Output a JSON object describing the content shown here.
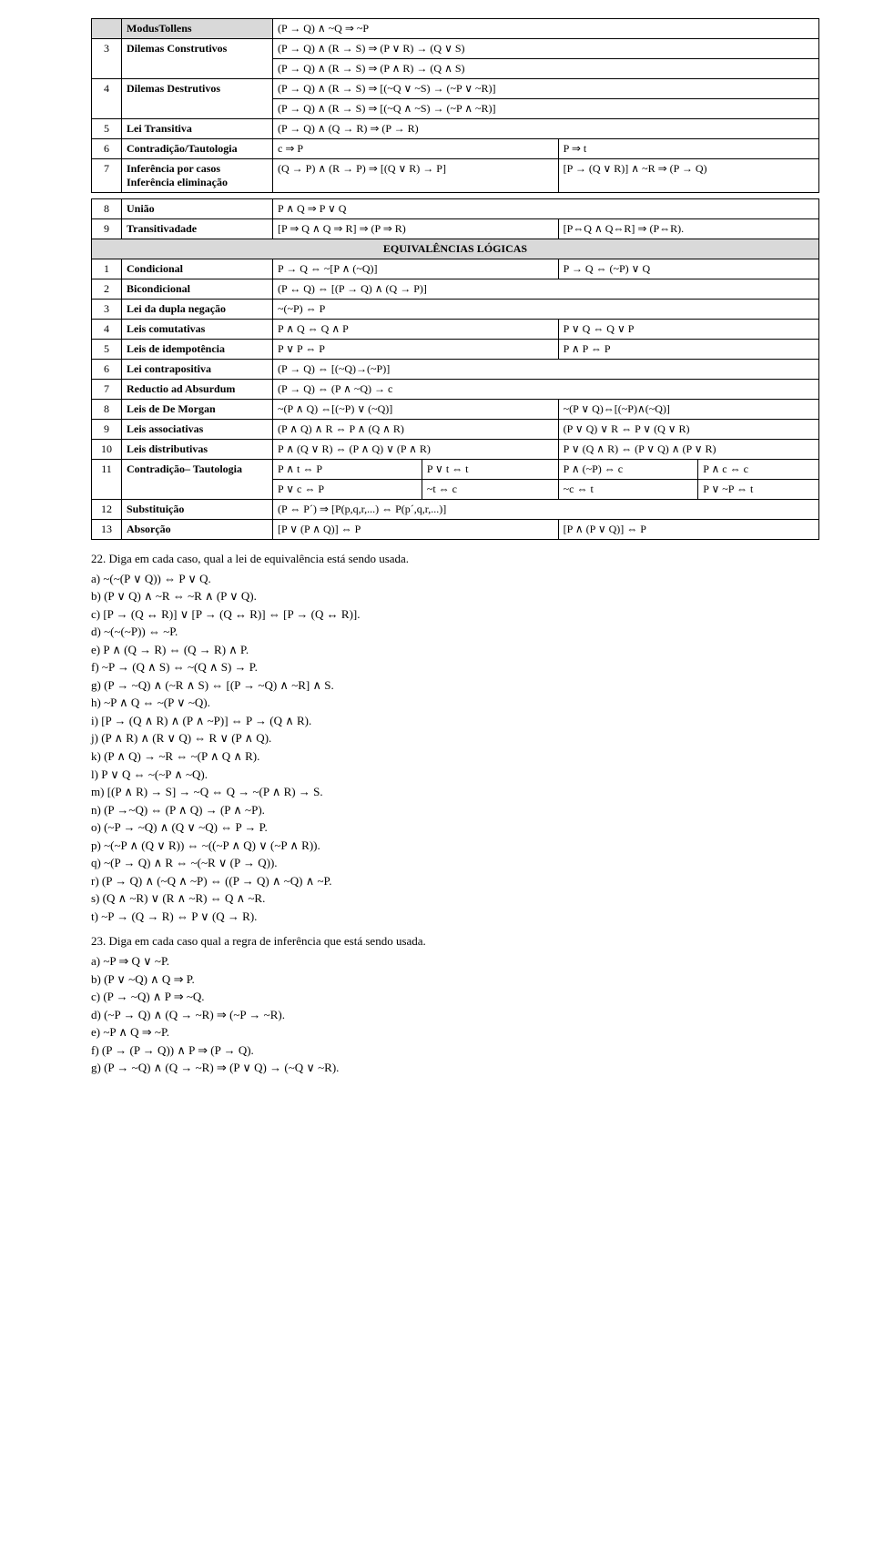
{
  "table1": {
    "rows": [
      {
        "num": "",
        "name": "ModusTollens",
        "c1": "(P → Q) ∧ ~Q ⇒ ~P",
        "c2": "",
        "cols": 1,
        "shadedNum": true,
        "shadedName": true
      },
      {
        "num": "3",
        "name": "Dilemas Construtivos",
        "c1a": "(P → Q) ∧ (R → S) ⇒ (P ∨ R) → (Q ∨ S)",
        "c1b": "(P → Q) ∧ (R → S) ⇒ (P ∧ R) → (Q ∧ S)",
        "two": true
      },
      {
        "num": "4",
        "name": "Dilemas Destrutivos",
        "c1a": "(P → Q) ∧ (R → S) ⇒ [(~Q ∨ ~S) → (~P ∨ ~R)]",
        "c1b": "(P → Q) ∧ (R → S) ⇒ [(~Q ∧ ~S) → (~P ∧ ~R)]",
        "two": true
      },
      {
        "num": "5",
        "name": "Lei Transitiva",
        "c1": "(P → Q) ∧ (Q → R) ⇒ (P → R)",
        "cols": 1
      },
      {
        "num": "6",
        "name": "Contradição/Tautologia",
        "c1": "c ⇒ P",
        "c2": "P ⇒ t",
        "cols": 2
      },
      {
        "num": "7",
        "name": "Inferência por casos Inferência eliminação",
        "c1": "(Q → P) ∧ (R → P) ⇒ [(Q ∨ R) → P]",
        "c2": "[P → (Q ∨ R)] ∧ ~R ⇒ (P → Q)",
        "cols": 2
      }
    ],
    "rows2": [
      {
        "num": "8",
        "name": "União",
        "c1": "P ∧ Q ⇒ P ∨ Q",
        "cols": 1
      },
      {
        "num": "9",
        "name": "Transitivadade",
        "c1": "[P ⇒ Q ∧ Q ⇒ R] ⇒ (P ⇒ R)",
        "c2": "[P⇔Q ∧ Q⇔R] ⇒ (P⇔R).",
        "cols": 2
      }
    ],
    "equivHeader": "EQUIVALÊNCIAS LÓGICAS",
    "equiv": [
      {
        "num": "1",
        "name": "Condicional",
        "c1": "P → Q ⇔ ~[P ∧ (~Q)]",
        "c2": "P → Q ⇔ (~P) ∨ Q",
        "cols": 2
      },
      {
        "num": "2",
        "name": "Bicondicional",
        "c1": "(P ↔ Q) ⇔ [(P → Q) ∧ (Q → P)]",
        "cols": 1
      },
      {
        "num": "3",
        "name": "Lei da dupla negação",
        "c1": "~(~P) ⇔ P",
        "cols": 1
      },
      {
        "num": "4",
        "name": "Leis comutativas",
        "c1": "P ∧ Q ⇔ Q ∧ P",
        "c2": "P ∨ Q ⇔ Q ∨ P",
        "cols": 2
      },
      {
        "num": "5",
        "name": "Leis de idempotência",
        "c1": "P ∨ P ⇔ P",
        "c2": "P ∧ P ⇔ P",
        "cols": 2
      },
      {
        "num": "6",
        "name": "Lei contrapositiva",
        "c1": "(P → Q) ⇔ [(~Q)→(~P)]",
        "cols": 1
      },
      {
        "num": "7",
        "name": "Reductio ad Absurdum",
        "c1": "(P → Q) ⇔ (P ∧ ~Q) → c",
        "cols": 1
      },
      {
        "num": "8",
        "name": "Leis de De Morgan",
        "c1": "~(P ∧ Q) ⇔[(~P) ∨ (~Q)]",
        "c2": "~(P ∨ Q)⇔[(~P)∧(~Q)]",
        "cols": 2
      },
      {
        "num": "9",
        "name": "Leis associativas",
        "c1": "(P ∧ Q) ∧ R ⇔ P ∧ (Q ∧ R)",
        "c2": "(P ∨ Q) ∨ R ⇔ P ∨ (Q ∨ R)",
        "cols": 2
      },
      {
        "num": "10",
        "name": "Leis distributivas",
        "c1": "P ∧ (Q ∨ R) ⇔ (P ∧ Q) ∨ (P ∧ R)",
        "c2": "P ∨ (Q ∧ R) ⇔ (P ∨ Q) ∧ (P ∨ R)",
        "cols": 2
      }
    ],
    "row11": {
      "num": "11",
      "name": "Contradição– Tautologia",
      "r1": [
        "P ∧ t ⇔ P",
        "P ∨ t ⇔ t",
        "P ∧ (~P) ⇔ c",
        "P ∧ c ⇔ c"
      ],
      "r2": [
        "P ∨ c ⇔ P",
        "~t ⇔ c",
        "~c ⇔ t",
        "P ∨ ~P ⇔ t"
      ]
    },
    "equiv2": [
      {
        "num": "12",
        "name": "Substituição",
        "c1": "(P ⇔ P´) ⇒ [P(p,q,r,...) ⇔ P(p´,q,r,...)]",
        "cols": 1
      },
      {
        "num": "13",
        "name": "Absorção",
        "c1": "[P ∨ (P ∧ Q)] ⇔ P",
        "c2": "[P ∧ (P ∨ Q)] ⇔ P",
        "cols": 2
      }
    ]
  },
  "q22": {
    "header": "22. Diga em cada caso, qual a lei de equivalência está sendo usada.",
    "items": [
      "a) ~(~(P ∨ Q)) ⇔ P ∨ Q.",
      "b) (P ∨ Q) ∧ ~R ⇔ ~R ∧ (P ∨ Q).",
      "c) [P → (Q ↔ R)] ∨ [P → (Q ↔ R)] ⇔ [P → (Q ↔ R)].",
      "d) ~(~(~P)) ⇔ ~P.",
      "e) P ∧ (Q → R) ⇔ (Q → R) ∧ P.",
      "f) ~P → (Q ∧ S) ⇔ ~(Q ∧ S) → P.",
      "g) (P → ~Q) ∧ (~R ∧ S) ⇔ [(P → ~Q) ∧ ~R] ∧ S.",
      "h) ~P ∧ Q ⇔ ~(P ∨ ~Q).",
      "i) [P → (Q ∧ R) ∧ (P ∧ ~P)] ⇔ P → (Q ∧ R).",
      "j) (P ∧ R) ∧ (R ∨ Q) ⇔ R ∨ (P ∧ Q).",
      "k) (P ∧ Q) → ~R ⇔ ~(P ∧ Q ∧ R).",
      "l) P ∨ Q ⇔ ~(~P ∧ ~Q).",
      "m) [(P ∧ R) → S] → ~Q ⇔ Q → ~(P ∧ R) → S.",
      "n) (P →~Q) ⇔ (P ∧ Q) → (P ∧ ~P).",
      "o) (~P → ~Q) ∧ (Q ∨ ~Q) ⇔ P → P.",
      "p) ~(~P ∧ (Q ∨ R)) ⇔ ~((~P ∧ Q) ∨ (~P ∧ R)).",
      "q) ~(P → Q) ∧ R ⇔ ~(~R ∨ (P → Q)).",
      "r) (P → Q) ∧ (~Q ∧ ~P) ⇔ ((P → Q) ∧ ~Q) ∧ ~P.",
      "s) (Q ∧ ~R) ∨ (R ∧ ~R) ⇔ Q ∧ ~R.",
      "t) ~P → (Q → R) ⇔ P ∨ (Q → R)."
    ]
  },
  "q23": {
    "header": "23. Diga em cada caso qual a regra de inferência que está sendo usada.",
    "items": [
      "a) ~P ⇒ Q ∨ ~P.",
      "b) (P ∨ ~Q) ∧ Q ⇒ P.",
      "c) (P → ~Q) ∧ P ⇒ ~Q.",
      "d) (~P → Q) ∧ (Q → ~R) ⇒ (~P → ~R).",
      "e) ~P ∧ Q ⇒ ~P.",
      "f) (P → (P → Q)) ∧ P ⇒ (P → Q).",
      "g) (P → ~Q) ∧ (Q → ~R) ⇒ (P ∨ Q) → (~Q ∨ ~R)."
    ]
  }
}
